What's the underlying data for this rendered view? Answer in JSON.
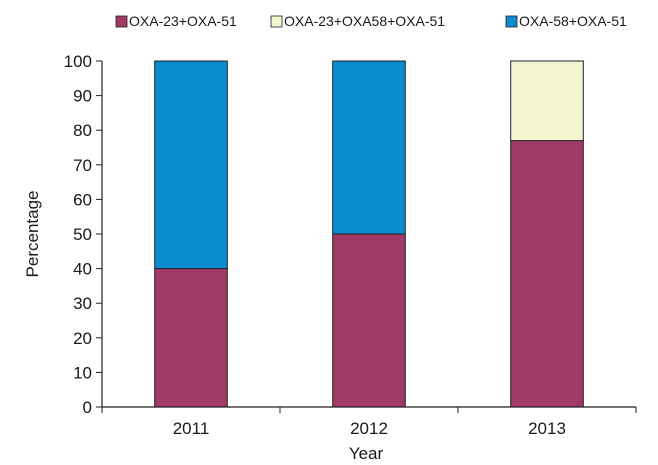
{
  "chart_data": {
    "type": "bar",
    "stacked": true,
    "title": "",
    "xlabel": "Year",
    "ylabel": "Percentage",
    "categories": [
      "2011",
      "2012",
      "2013"
    ],
    "ylim": [
      0,
      100
    ],
    "yticks": [
      "0",
      "10",
      "20",
      "30",
      "40",
      "50",
      "60",
      "70",
      "80",
      "90",
      "100"
    ],
    "legend_position": "top",
    "grid": false,
    "series": [
      {
        "name": "OXA-23+OXA-51",
        "color": "#a23a67",
        "values": [
          40,
          50,
          77
        ]
      },
      {
        "name": "OXA-23+OXA58+OXA-51",
        "color": "#f3f5cf",
        "values": [
          0,
          0,
          23
        ]
      },
      {
        "name": "OXA-58+OXA-51",
        "color": "#0b8bd0",
        "values": [
          60,
          50,
          0
        ]
      }
    ]
  }
}
